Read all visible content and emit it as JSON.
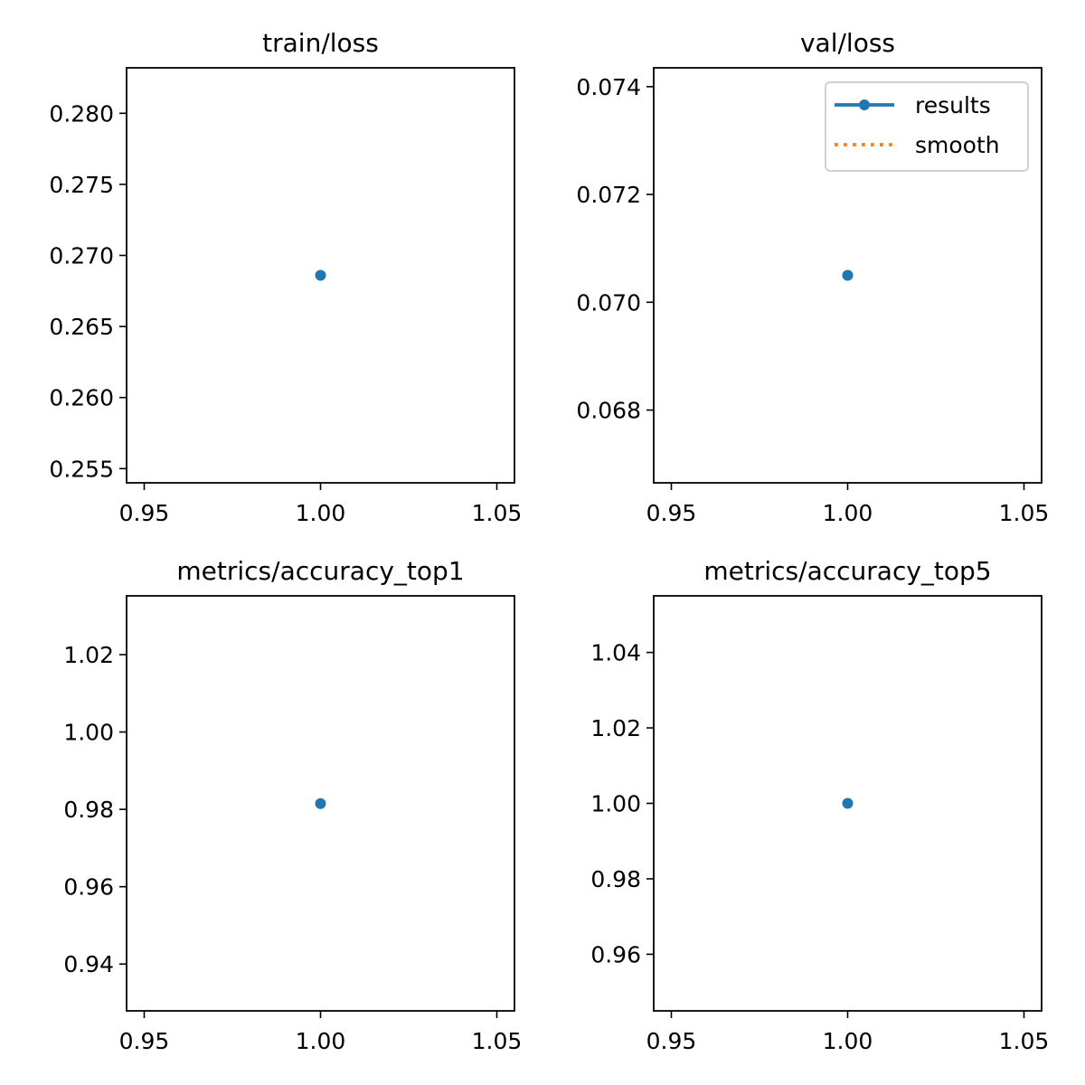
{
  "chart_data": [
    {
      "type": "line",
      "title": "train/loss",
      "xlim": [
        0.945,
        1.055
      ],
      "ylim": [
        0.254,
        0.2832
      ],
      "xticks": [
        0.95,
        1.0,
        1.05
      ],
      "xtick_labels": [
        "0.95",
        "1.00",
        "1.05"
      ],
      "yticks": [
        0.255,
        0.26,
        0.265,
        0.27,
        0.275,
        0.28
      ],
      "ytick_labels": [
        "0.255",
        "0.260",
        "0.265",
        "0.270",
        "0.275",
        "0.280"
      ],
      "series": [
        {
          "x": [
            1.0
          ],
          "y": [
            0.2686
          ],
          "color": "#1f77b4"
        }
      ],
      "legend": null,
      "grid": false
    },
    {
      "type": "line",
      "title": "val/loss",
      "xlim": [
        0.945,
        1.055
      ],
      "ylim": [
        0.06665,
        0.07435
      ],
      "xticks": [
        0.95,
        1.0,
        1.05
      ],
      "xtick_labels": [
        "0.95",
        "1.00",
        "1.05"
      ],
      "yticks": [
        0.068,
        0.07,
        0.072,
        0.074
      ],
      "ytick_labels": [
        "0.068",
        "0.070",
        "0.072",
        "0.074"
      ],
      "series": [
        {
          "name": "results",
          "x": [
            1.0
          ],
          "y": [
            0.0705
          ],
          "color": "#1f77b4",
          "style": "solid-marker"
        },
        {
          "name": "smooth",
          "x": [],
          "y": [],
          "color": "#ff7f0e",
          "style": "dotted"
        }
      ],
      "legend": "top-right",
      "grid": false
    },
    {
      "type": "line",
      "title": "metrics/accuracy_top1",
      "xlim": [
        0.945,
        1.055
      ],
      "ylim": [
        0.9279,
        1.0352
      ],
      "xticks": [
        0.95,
        1.0,
        1.05
      ],
      "xtick_labels": [
        "0.95",
        "1.00",
        "1.05"
      ],
      "yticks": [
        0.94,
        0.96,
        0.98,
        1.0,
        1.02
      ],
      "ytick_labels": [
        "0.94",
        "0.96",
        "0.98",
        "1.00",
        "1.02"
      ],
      "series": [
        {
          "x": [
            1.0
          ],
          "y": [
            0.9815
          ],
          "color": "#1f77b4"
        }
      ],
      "legend": null,
      "grid": false
    },
    {
      "type": "line",
      "title": "metrics/accuracy_top5",
      "xlim": [
        0.945,
        1.055
      ],
      "ylim": [
        0.945,
        1.055
      ],
      "xticks": [
        0.95,
        1.0,
        1.05
      ],
      "xtick_labels": [
        "0.95",
        "1.00",
        "1.05"
      ],
      "yticks": [
        0.96,
        0.98,
        1.0,
        1.02,
        1.04
      ],
      "ytick_labels": [
        "0.96",
        "0.98",
        "1.00",
        "1.02",
        "1.04"
      ],
      "series": [
        {
          "x": [
            1.0
          ],
          "y": [
            1.0
          ],
          "color": "#1f77b4"
        }
      ],
      "legend": null,
      "grid": false
    }
  ]
}
